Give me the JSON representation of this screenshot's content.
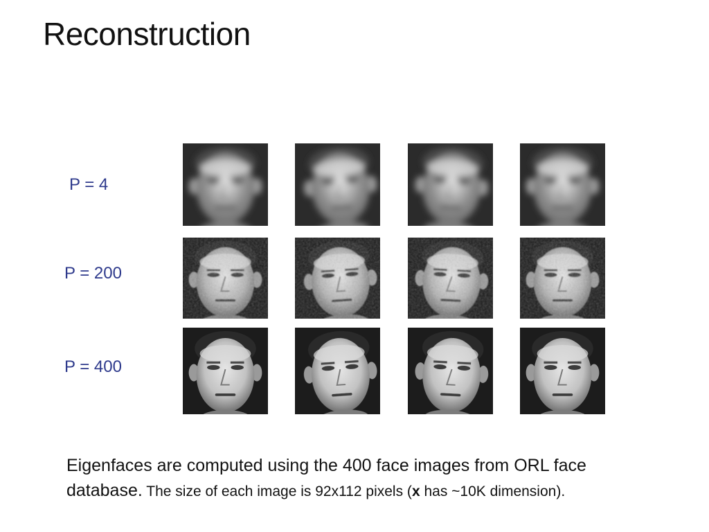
{
  "slide": {
    "title": "Reconstruction",
    "rows": [
      {
        "label": "P = 4",
        "quality": "blurry"
      },
      {
        "label": "P = 200",
        "quality": "noisy"
      },
      {
        "label": "P = 400",
        "quality": "sharp"
      }
    ],
    "caption": {
      "part1": "Eigenfaces are computed using the 400 face images from ORL face database.",
      "part2": " The size of each image is 92x112 pixels (",
      "bold_x": "x",
      "part3": " has ~10K dimension)."
    }
  }
}
